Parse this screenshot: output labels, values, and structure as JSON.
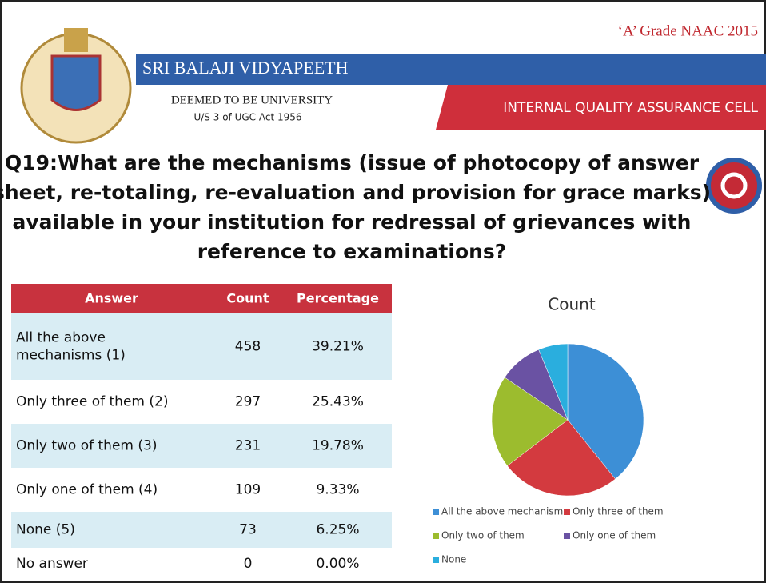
{
  "header": {
    "grade": "‘A’ Grade NAAC 2015",
    "university": "SRI BALAJI VIDYAPEETH",
    "deemed": "DEEMED TO BE UNIVERSITY",
    "act": "U/S 3 of UGC Act 1956",
    "cell": "INTERNAL QUALITY ASSURANCE CELL"
  },
  "question": [
    "Q19:What are the mechanisms (issue of photocopy of answer",
    "sheet, re-totaling, re-evaluation and provision for grace marks)",
    "available in your institution for redressal of grievances with",
    "reference to examinations?"
  ],
  "table": {
    "columns": [
      "Answer",
      "Count",
      "Percentage"
    ],
    "rows": [
      [
        [
          "All the above",
          "mechanisms (1)"
        ],
        "458",
        "39.21%"
      ],
      [
        "Only three of them (2)",
        "297",
        "25.43%"
      ],
      [
        "Only two of them (3)",
        "231",
        "19.78%"
      ],
      [
        "Only one of them (4)",
        "109",
        "9.33%"
      ],
      [
        "None (5)",
        "73",
        "6.25%"
      ],
      [
        "No answer",
        "0",
        "0.00%"
      ]
    ]
  },
  "chart_data": {
    "type": "pie",
    "title": "Count",
    "categories": [
      "All the above mechanisms",
      "Only three of them",
      "Only two of them",
      "Only one of them",
      "None"
    ],
    "values": [
      458,
      297,
      231,
      109,
      73
    ],
    "colors": [
      "#3d8fd6",
      "#d33a3f",
      "#9cbc2e",
      "#6a52a3",
      "#2aaede"
    ]
  }
}
